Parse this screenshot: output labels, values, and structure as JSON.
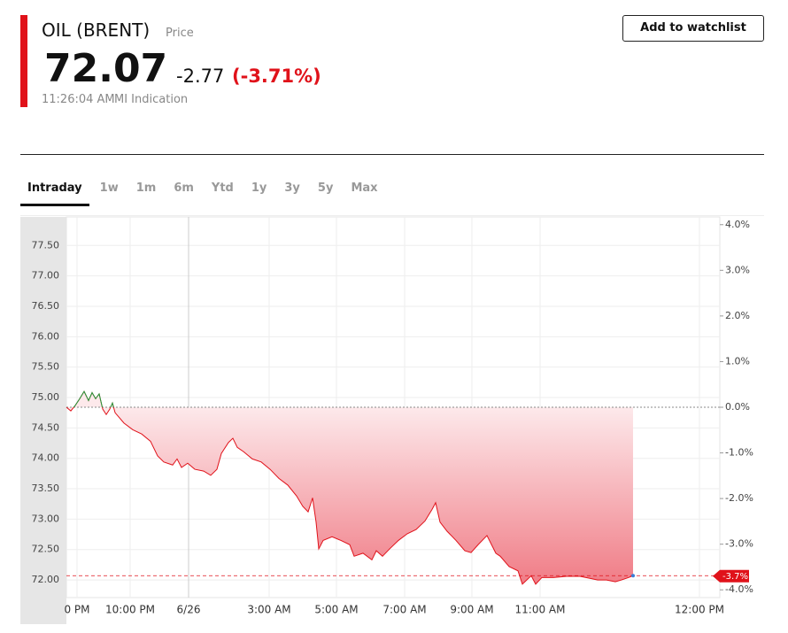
{
  "header": {
    "title": "OIL (BRENT)",
    "subtitle": "Price",
    "price": "72.07",
    "change": "-2.77",
    "change_percent": "(-3.71%)",
    "time": "11:26:04 AM",
    "source": "MI Indication",
    "button": "Add to watchlist"
  },
  "tabs": [
    "Intraday",
    "1w",
    "1m",
    "6m",
    "Ytd",
    "1y",
    "3y",
    "5y",
    "Max"
  ],
  "chart_data": {
    "type": "line",
    "x": [
      0,
      5,
      10,
      15,
      20,
      25,
      29,
      33,
      37,
      41,
      45,
      49,
      52,
      55,
      65,
      75,
      85,
      95,
      103,
      110,
      120,
      125,
      130,
      137,
      145,
      155,
      163,
      170,
      175,
      183,
      188,
      193,
      200,
      210,
      220,
      230,
      240,
      250,
      260,
      267,
      273,
      278,
      282,
      285,
      290,
      300,
      310,
      320,
      325,
      335,
      345,
      350,
      357,
      365,
      375,
      385,
      395,
      405,
      413,
      417,
      422,
      430,
      440,
      450,
      457,
      465,
      475,
      485,
      490,
      500,
      510,
      515,
      525,
      530,
      537,
      550,
      565,
      580,
      590,
      600,
      610,
      620,
      627,
      635,
      640
    ],
    "series": [
      {
        "color": "#e0121a",
        "above_color": "#1f9a3a",
        "values": [
          74.84,
          74.78,
          74.87,
          74.98,
          75.1,
          74.95,
          75.08,
          74.98,
          75.06,
          74.81,
          74.72,
          74.81,
          74.91,
          74.75,
          74.58,
          74.47,
          74.4,
          74.28,
          74.04,
          73.94,
          73.89,
          73.99,
          73.85,
          73.92,
          73.82,
          73.79,
          73.72,
          73.82,
          74.08,
          74.26,
          74.33,
          74.18,
          74.11,
          73.99,
          73.94,
          73.82,
          73.67,
          73.56,
          73.38,
          73.21,
          73.12,
          73.35,
          72.95,
          72.51,
          72.65,
          72.71,
          72.65,
          72.58,
          72.39,
          72.44,
          72.33,
          72.48,
          72.39,
          72.51,
          72.65,
          72.76,
          72.83,
          72.97,
          73.16,
          73.27,
          72.95,
          72.8,
          72.65,
          72.48,
          72.45,
          72.58,
          72.73,
          72.44,
          72.39,
          72.22,
          72.15,
          71.93,
          72.07,
          71.93,
          72.04,
          72.04,
          72.06,
          72.06,
          72.03,
          72.0,
          72.0,
          71.97,
          72.0,
          72.04,
          72.07
        ]
      }
    ],
    "reference": 74.84,
    "current_marker": {
      "value": -3.7,
      "label": "-3.7%"
    },
    "xlim": [
      0,
      738
    ],
    "xticks": [
      {
        "value": 12,
        "label": "0 PM"
      },
      {
        "value": 72,
        "label": "10:00 PM"
      },
      {
        "value": 138,
        "label": "6/26"
      },
      {
        "value": 229,
        "label": "3:00 AM"
      },
      {
        "value": 305,
        "label": "5:00 AM"
      },
      {
        "value": 382,
        "label": "7:00 AM"
      },
      {
        "value": 458,
        "label": "9:00 AM"
      },
      {
        "value": 535,
        "label": "11:00 AM"
      },
      {
        "value": 715,
        "label": "12:00 PM"
      }
    ],
    "ylim": [
      71.71,
      77.97
    ],
    "yticks": [
      {
        "value": 72,
        "label": "72.00"
      },
      {
        "value": 72.5,
        "label": "72.50"
      },
      {
        "value": 73,
        "label": "73.00"
      },
      {
        "value": 73.5,
        "label": "73.50"
      },
      {
        "value": 74,
        "label": "74.00"
      },
      {
        "value": 74.5,
        "label": "74.50"
      },
      {
        "value": 75,
        "label": "75.00"
      },
      {
        "value": 75.5,
        "label": "75.50"
      },
      {
        "value": 76,
        "label": "76.00"
      },
      {
        "value": 76.5,
        "label": "76.50"
      },
      {
        "value": 77,
        "label": "77.00"
      },
      {
        "value": 77.5,
        "label": "77.50"
      }
    ],
    "y2lim": [
      -4.17,
      4.17
    ],
    "y2ticks": [
      {
        "value": -4,
        "label": "-4.0%"
      },
      {
        "value": -3,
        "label": "-3.0%"
      },
      {
        "value": -2,
        "label": "-2.0%"
      },
      {
        "value": -1,
        "label": "-1.0%"
      },
      {
        "value": 0,
        "label": "0.0%"
      },
      {
        "value": 1,
        "label": "1.0%"
      },
      {
        "value": 2,
        "label": "2.0%"
      },
      {
        "value": 3,
        "label": "3.0%"
      },
      {
        "value": 4,
        "label": "4.0%"
      }
    ],
    "grid": true
  }
}
